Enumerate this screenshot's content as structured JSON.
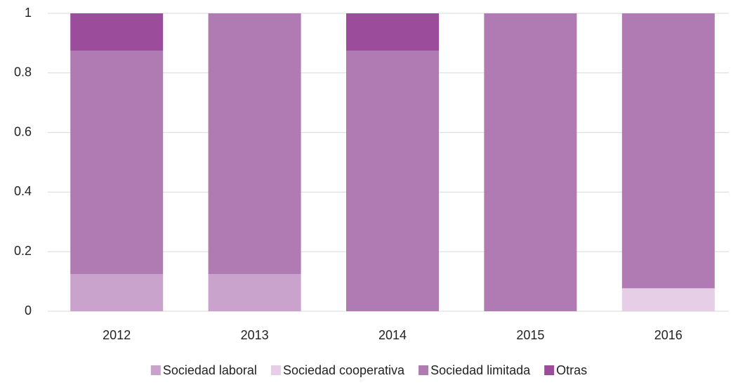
{
  "chart_data": {
    "type": "stacked_bar",
    "categories": [
      "2012",
      "2013",
      "2014",
      "2015",
      "2016"
    ],
    "series": [
      {
        "name": "Sociedad laboral",
        "color": "#c9a3cc",
        "values": [
          0.125,
          0.125,
          0,
          0,
          0
        ]
      },
      {
        "name": "Sociedad cooperativa",
        "color": "#e6cfe6",
        "values": [
          0,
          0,
          0,
          0,
          0.077
        ]
      },
      {
        "name": "Sociedad limitada",
        "color": "#b07ab2",
        "values": [
          0.75,
          0.875,
          0.875,
          1,
          0.923
        ]
      },
      {
        "name": "Otras",
        "color": "#9b4c9a",
        "values": [
          0.125,
          0,
          0.125,
          0,
          0
        ]
      }
    ],
    "ylim": [
      0,
      1
    ],
    "yticks": [
      0,
      0.2,
      0.4,
      0.6,
      0.8,
      1
    ],
    "grid": true,
    "legend": "bottom"
  }
}
